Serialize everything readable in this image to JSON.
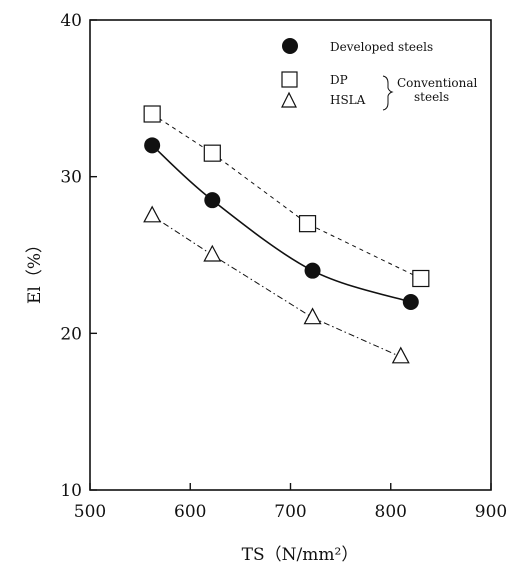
{
  "chart_data": {
    "type": "line",
    "xlabel": "TS（N/mm²）",
    "ylabel": "El（%）",
    "xlim": [
      500,
      900
    ],
    "ylim": [
      10,
      40
    ],
    "xticks": [
      "500",
      "600",
      "700",
      "800",
      "900"
    ],
    "yticks": [
      "10",
      "20",
      "30",
      "40"
    ],
    "grid": false,
    "legend_position": "top-right",
    "legend_group_label": [
      "Conventional",
      "steels"
    ],
    "series": [
      {
        "name": "Developed steels",
        "marker": "filled-circle",
        "line_style": "solid",
        "x": [
          562,
          622,
          722,
          820
        ],
        "y": [
          32.0,
          28.5,
          24.0,
          22.0
        ]
      },
      {
        "name": "DP",
        "marker": "open-square",
        "line_style": "dashed",
        "x": [
          562,
          622,
          717,
          830
        ],
        "y": [
          34.0,
          31.5,
          27.0,
          23.5
        ]
      },
      {
        "name": "HSLA",
        "marker": "open-triangle",
        "line_style": "dash-dot",
        "x": [
          562,
          622,
          722,
          810
        ],
        "y": [
          27.5,
          25.0,
          21.0,
          18.5
        ]
      }
    ]
  }
}
